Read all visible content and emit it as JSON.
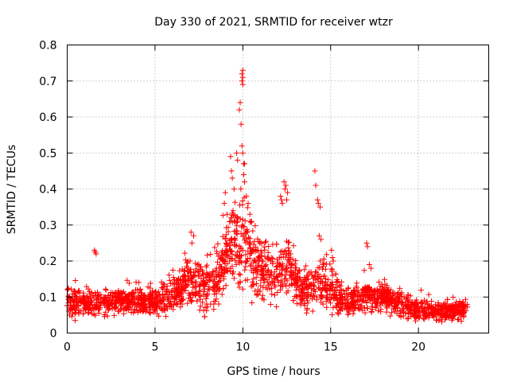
{
  "chart_data": {
    "type": "scatter",
    "title": "Day 330 of 2021, SRMTID for receiver wtzr",
    "xlabel": "GPS time / hours",
    "ylabel": "SRMTID / TECUs",
    "xlim": [
      0,
      24
    ],
    "ylim": [
      0,
      0.8
    ],
    "grid": true,
    "marker": "plus",
    "series_color": "#ff0000",
    "xticks": [
      {
        "value": 0,
        "label": "0"
      },
      {
        "value": 5,
        "label": "5"
      },
      {
        "value": 10,
        "label": "10"
      },
      {
        "value": 15,
        "label": "15"
      },
      {
        "value": 20,
        "label": "20"
      }
    ],
    "yticks": [
      {
        "value": 0,
        "label": "0"
      },
      {
        "value": 0.1,
        "label": "0.1"
      },
      {
        "value": 0.2,
        "label": "0.2"
      },
      {
        "value": 0.3,
        "label": "0.3"
      },
      {
        "value": 0.4,
        "label": "0.4"
      },
      {
        "value": 0.5,
        "label": "0.5"
      },
      {
        "value": 0.6,
        "label": "0.6"
      },
      {
        "value": 0.7,
        "label": "0.7"
      },
      {
        "value": 0.8,
        "label": "0.8"
      }
    ],
    "data_range_x": [
      0,
      22.8
    ],
    "envelope": [
      [
        0,
        0.09,
        0.04
      ],
      [
        1,
        0.08,
        0.03
      ],
      [
        1.5,
        0.08,
        0.035
      ],
      [
        2,
        0.08,
        0.03
      ],
      [
        3,
        0.09,
        0.035
      ],
      [
        4,
        0.09,
        0.04
      ],
      [
        5,
        0.085,
        0.035
      ],
      [
        5.5,
        0.09,
        0.04
      ],
      [
        6,
        0.1,
        0.04
      ],
      [
        6.5,
        0.13,
        0.05
      ],
      [
        7,
        0.16,
        0.07
      ],
      [
        7.5,
        0.14,
        0.06
      ],
      [
        8,
        0.13,
        0.06
      ],
      [
        8.5,
        0.15,
        0.07
      ],
      [
        9,
        0.22,
        0.08
      ],
      [
        9.5,
        0.26,
        0.1
      ],
      [
        10,
        0.27,
        0.12
      ],
      [
        10.5,
        0.22,
        0.1
      ],
      [
        11,
        0.18,
        0.08
      ],
      [
        11.5,
        0.16,
        0.07
      ],
      [
        12,
        0.17,
        0.07
      ],
      [
        12.5,
        0.18,
        0.08
      ],
      [
        13,
        0.14,
        0.06
      ],
      [
        13.5,
        0.12,
        0.05
      ],
      [
        14,
        0.13,
        0.05
      ],
      [
        14.5,
        0.14,
        0.06
      ],
      [
        15,
        0.12,
        0.05
      ],
      [
        16,
        0.09,
        0.04
      ],
      [
        17,
        0.1,
        0.04
      ],
      [
        18,
        0.1,
        0.04
      ],
      [
        19,
        0.08,
        0.035
      ],
      [
        20,
        0.065,
        0.03
      ],
      [
        21,
        0.06,
        0.025
      ],
      [
        22,
        0.06,
        0.025
      ],
      [
        22.8,
        0.065,
        0.025
      ]
    ],
    "highlight_points": [
      [
        1.55,
        0.23
      ],
      [
        1.6,
        0.225
      ],
      [
        1.65,
        0.22
      ],
      [
        7.05,
        0.28
      ],
      [
        7.1,
        0.25
      ],
      [
        7.2,
        0.27
      ],
      [
        8.95,
        0.36
      ],
      [
        9.0,
        0.39
      ],
      [
        9.1,
        0.33
      ],
      [
        9.3,
        0.49
      ],
      [
        9.35,
        0.45
      ],
      [
        9.4,
        0.43
      ],
      [
        9.5,
        0.4
      ],
      [
        9.65,
        0.5
      ],
      [
        9.7,
        0.48
      ],
      [
        9.8,
        0.62
      ],
      [
        9.85,
        0.64
      ],
      [
        9.9,
        0.58
      ],
      [
        9.95,
        0.7
      ],
      [
        9.95,
        0.72
      ],
      [
        10.0,
        0.73
      ],
      [
        10.0,
        0.71
      ],
      [
        10.0,
        0.69
      ],
      [
        9.95,
        0.52
      ],
      [
        10.0,
        0.5
      ],
      [
        10.05,
        0.47
      ],
      [
        10.1,
        0.47
      ],
      [
        10.05,
        0.44
      ],
      [
        10.1,
        0.42
      ],
      [
        10.2,
        0.38
      ],
      [
        10.3,
        0.36
      ],
      [
        10.4,
        0.33
      ],
      [
        10.5,
        0.31
      ],
      [
        12.15,
        0.38
      ],
      [
        12.2,
        0.37
      ],
      [
        12.25,
        0.36
      ],
      [
        12.35,
        0.42
      ],
      [
        12.4,
        0.4
      ],
      [
        12.45,
        0.41
      ],
      [
        12.5,
        0.37
      ],
      [
        12.55,
        0.39
      ],
      [
        14.1,
        0.45
      ],
      [
        14.15,
        0.41
      ],
      [
        14.25,
        0.37
      ],
      [
        14.3,
        0.36
      ],
      [
        14.4,
        0.35
      ],
      [
        14.35,
        0.27
      ],
      [
        14.45,
        0.26
      ],
      [
        15.05,
        0.23
      ],
      [
        15.1,
        0.21
      ],
      [
        15.15,
        0.2
      ],
      [
        17.05,
        0.25
      ],
      [
        17.1,
        0.24
      ],
      [
        17.2,
        0.19
      ],
      [
        17.3,
        0.18
      ]
    ]
  }
}
